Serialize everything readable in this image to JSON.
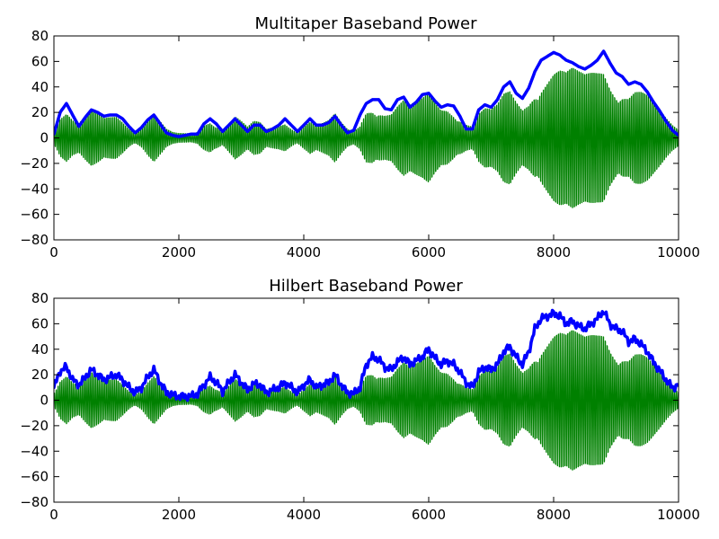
{
  "colors": {
    "signal": "#008000",
    "envelope": "#0000ff",
    "axes": "#000000",
    "background": "#ffffff"
  },
  "chart_data": [
    {
      "type": "line",
      "title": "Multitaper Baseband Power",
      "xlim": [
        0,
        10000
      ],
      "ylim": [
        -80,
        80
      ],
      "xticks": [
        "0",
        "2000",
        "4000",
        "6000",
        "8000",
        "10000"
      ],
      "yticks": [
        "80",
        "60",
        "40",
        "20",
        "0",
        "−20",
        "−40",
        "−60",
        "−80"
      ],
      "grid": false,
      "series": [
        {
          "role": "signal",
          "color": "#008000",
          "style": "oscillating",
          "envelope_x": [
            0,
            100,
            200,
            300,
            400,
            500,
            600,
            700,
            800,
            900,
            1000,
            1100,
            1200,
            1300,
            1400,
            1500,
            1600,
            1700,
            1800,
            1900,
            2000,
            2100,
            2200,
            2300,
            2400,
            2500,
            2600,
            2700,
            2800,
            2900,
            3000,
            3100,
            3200,
            3300,
            3400,
            3500,
            3600,
            3700,
            3800,
            3900,
            4000,
            4100,
            4200,
            4300,
            4400,
            4500,
            4600,
            4700,
            4800,
            4900,
            5000,
            5100,
            5200,
            5300,
            5400,
            5500,
            5600,
            5700,
            5800,
            5900,
            6000,
            6100,
            6200,
            6300,
            6400,
            6500,
            6600,
            6700,
            6800,
            6900,
            7000,
            7100,
            7200,
            7300,
            7400,
            7500,
            7600,
            7700,
            7800,
            7900,
            8000,
            8100,
            8200,
            8300,
            8400,
            8500,
            8600,
            8700,
            8800,
            8900,
            9000,
            9100,
            9200,
            9300,
            9400,
            9500,
            9600,
            9700,
            9800,
            9900,
            10000
          ],
          "envelope_y": [
            10,
            25,
            28,
            18,
            14,
            20,
            25,
            22,
            18,
            20,
            22,
            18,
            12,
            8,
            12,
            20,
            25,
            16,
            8,
            5,
            4,
            4,
            4,
            6,
            14,
            20,
            16,
            9,
            16,
            22,
            16,
            10,
            15,
            14,
            8,
            10,
            12,
            16,
            12,
            8,
            14,
            18,
            12,
            14,
            16,
            22,
            14,
            8,
            6,
            12,
            30,
            36,
            34,
            28,
            26,
            32,
            36,
            30,
            33,
            36,
            42,
            35,
            30,
            33,
            30,
            24,
            16,
            12,
            24,
            28,
            26,
            30,
            40,
            44,
            36,
            30,
            40,
            58,
            66,
            68,
            70,
            68,
            62,
            64,
            60,
            58,
            62,
            66,
            72,
            62,
            58,
            56,
            48,
            50,
            46,
            40,
            32,
            25,
            18,
            12,
            8
          ]
        },
        {
          "role": "envelope",
          "color": "#0000ff",
          "x": [
            0,
            100,
            200,
            300,
            400,
            500,
            600,
            700,
            800,
            900,
            1000,
            1100,
            1200,
            1300,
            1400,
            1500,
            1600,
            1700,
            1800,
            1900,
            2000,
            2100,
            2200,
            2300,
            2400,
            2500,
            2600,
            2700,
            2800,
            2900,
            3000,
            3100,
            3200,
            3300,
            3400,
            3500,
            3600,
            3700,
            3800,
            3900,
            4000,
            4100,
            4200,
            4300,
            4400,
            4500,
            4600,
            4700,
            4800,
            4900,
            5000,
            5100,
            5200,
            5300,
            5400,
            5500,
            5600,
            5700,
            5800,
            5900,
            6000,
            6100,
            6200,
            6300,
            6400,
            6500,
            6600,
            6700,
            6800,
            6900,
            7000,
            7100,
            7200,
            7300,
            7400,
            7500,
            7600,
            7700,
            7800,
            7900,
            8000,
            8100,
            8200,
            8300,
            8400,
            8500,
            8600,
            8700,
            8800,
            8900,
            9000,
            9100,
            9200,
            9300,
            9400,
            9500,
            9600,
            9700,
            9800,
            9900,
            10000
          ],
          "y": [
            3,
            20,
            27,
            18,
            9,
            16,
            22,
            20,
            17,
            18,
            18,
            15,
            9,
            4,
            8,
            14,
            18,
            11,
            4,
            2,
            1,
            2,
            3,
            3,
            11,
            15,
            11,
            5,
            10,
            15,
            10,
            5,
            10,
            10,
            5,
            7,
            10,
            15,
            10,
            5,
            10,
            15,
            10,
            10,
            12,
            17,
            10,
            4,
            6,
            18,
            27,
            30,
            30,
            23,
            22,
            30,
            32,
            24,
            28,
            34,
            35,
            29,
            24,
            26,
            25,
            17,
            7,
            7,
            22,
            26,
            24,
            30,
            40,
            44,
            35,
            31,
            39,
            52,
            61,
            64,
            67,
            65,
            61,
            59,
            56,
            54,
            57,
            61,
            68,
            59,
            51,
            48,
            42,
            44,
            42,
            36,
            28,
            21,
            13,
            6,
            2
          ]
        }
      ]
    },
    {
      "type": "line",
      "title": "Hilbert Baseband Power",
      "xlim": [
        0,
        10000
      ],
      "ylim": [
        -80,
        80
      ],
      "xticks": [
        "0",
        "2000",
        "4000",
        "6000",
        "8000",
        "10000"
      ],
      "yticks": [
        "80",
        "60",
        "40",
        "20",
        "0",
        "−20",
        "−40",
        "−60",
        "−80"
      ],
      "grid": false,
      "series": [
        {
          "role": "signal",
          "color": "#008000",
          "style": "oscillating",
          "envelope_x": [
            0,
            100,
            200,
            300,
            400,
            500,
            600,
            700,
            800,
            900,
            1000,
            1100,
            1200,
            1300,
            1400,
            1500,
            1600,
            1700,
            1800,
            1900,
            2000,
            2100,
            2200,
            2300,
            2400,
            2500,
            2600,
            2700,
            2800,
            2900,
            3000,
            3100,
            3200,
            3300,
            3400,
            3500,
            3600,
            3700,
            3800,
            3900,
            4000,
            4100,
            4200,
            4300,
            4400,
            4500,
            4600,
            4700,
            4800,
            4900,
            5000,
            5100,
            5200,
            5300,
            5400,
            5500,
            5600,
            5700,
            5800,
            5900,
            6000,
            6100,
            6200,
            6300,
            6400,
            6500,
            6600,
            6700,
            6800,
            6900,
            7000,
            7100,
            7200,
            7300,
            7400,
            7500,
            7600,
            7700,
            7800,
            7900,
            8000,
            8100,
            8200,
            8300,
            8400,
            8500,
            8600,
            8700,
            8800,
            8900,
            9000,
            9100,
            9200,
            9300,
            9400,
            9500,
            9600,
            9700,
            9800,
            9900,
            10000
          ],
          "envelope_y": [
            10,
            25,
            28,
            18,
            14,
            20,
            25,
            22,
            18,
            20,
            22,
            18,
            12,
            8,
            12,
            20,
            25,
            16,
            8,
            5,
            4,
            4,
            4,
            6,
            14,
            20,
            16,
            9,
            16,
            22,
            16,
            10,
            15,
            14,
            8,
            10,
            12,
            16,
            12,
            8,
            14,
            18,
            12,
            14,
            16,
            22,
            14,
            8,
            6,
            12,
            30,
            36,
            34,
            28,
            26,
            32,
            36,
            30,
            33,
            36,
            42,
            35,
            30,
            33,
            30,
            24,
            16,
            12,
            24,
            28,
            26,
            30,
            40,
            44,
            36,
            30,
            40,
            58,
            66,
            68,
            70,
            68,
            62,
            64,
            60,
            58,
            62,
            66,
            72,
            62,
            58,
            56,
            48,
            50,
            46,
            40,
            32,
            25,
            18,
            12,
            8
          ]
        },
        {
          "role": "envelope",
          "color": "#0000ff",
          "x": [
            0,
            100,
            200,
            300,
            400,
            500,
            600,
            700,
            800,
            900,
            1000,
            1100,
            1200,
            1300,
            1400,
            1500,
            1600,
            1700,
            1800,
            1900,
            2000,
            2100,
            2200,
            2300,
            2400,
            2500,
            2600,
            2700,
            2800,
            2900,
            3000,
            3100,
            3200,
            3300,
            3400,
            3500,
            3600,
            3700,
            3800,
            3900,
            4000,
            4100,
            4200,
            4300,
            4400,
            4500,
            4600,
            4700,
            4800,
            4900,
            5000,
            5100,
            5200,
            5300,
            5400,
            5500,
            5600,
            5700,
            5800,
            5900,
            6000,
            6100,
            6200,
            6300,
            6400,
            6500,
            6600,
            6700,
            6800,
            6900,
            7000,
            7100,
            7200,
            7300,
            7400,
            7500,
            7600,
            7700,
            7800,
            7900,
            8000,
            8100,
            8200,
            8300,
            8400,
            8500,
            8600,
            8700,
            8800,
            8900,
            9000,
            9100,
            9200,
            9300,
            9400,
            9500,
            9600,
            9700,
            9800,
            9900,
            10000
          ],
          "y": [
            10,
            23,
            26,
            16,
            12,
            18,
            24,
            20,
            16,
            18,
            20,
            16,
            10,
            6,
            10,
            18,
            24,
            14,
            6,
            4,
            3,
            3,
            3,
            5,
            12,
            18,
            14,
            7,
            14,
            20,
            14,
            8,
            13,
            12,
            6,
            8,
            10,
            14,
            10,
            6,
            12,
            16,
            10,
            12,
            14,
            20,
            12,
            6,
            5,
            10,
            28,
            34,
            32,
            26,
            24,
            30,
            34,
            28,
            31,
            34,
            40,
            33,
            28,
            31,
            28,
            22,
            14,
            10,
            22,
            26,
            24,
            28,
            38,
            42,
            34,
            28,
            38,
            56,
            64,
            66,
            68,
            66,
            60,
            62,
            58,
            56,
            60,
            64,
            70,
            60,
            56,
            54,
            46,
            48,
            44,
            38,
            30,
            23,
            16,
            10,
            12
          ]
        }
      ]
    }
  ]
}
